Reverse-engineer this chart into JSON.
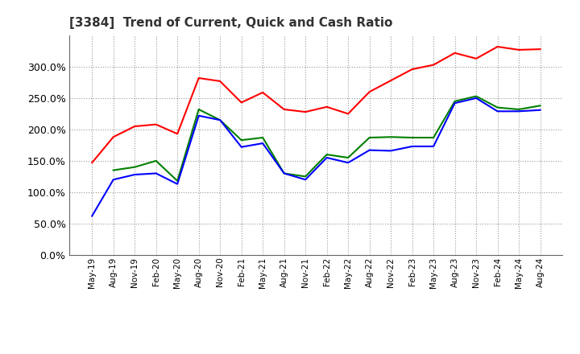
{
  "title": "[3384]  Trend of Current, Quick and Cash Ratio",
  "x_labels": [
    "May-19",
    "Aug-19",
    "Nov-19",
    "Feb-20",
    "May-20",
    "Aug-20",
    "Nov-20",
    "Feb-21",
    "May-21",
    "Aug-21",
    "Nov-21",
    "Feb-22",
    "May-22",
    "Aug-22",
    "Nov-22",
    "Feb-23",
    "May-23",
    "Aug-23",
    "Nov-23",
    "Feb-24",
    "May-24",
    "Aug-24"
  ],
  "current_ratio": [
    1.47,
    1.88,
    2.05,
    2.08,
    1.93,
    2.82,
    2.77,
    2.43,
    2.59,
    2.32,
    2.28,
    2.36,
    2.25,
    2.6,
    2.78,
    2.96,
    3.03,
    3.22,
    3.13,
    3.32,
    3.27,
    3.28
  ],
  "quick_ratio": [
    null,
    1.35,
    1.4,
    1.5,
    1.18,
    2.32,
    2.15,
    1.83,
    1.87,
    1.3,
    1.25,
    1.6,
    1.55,
    1.87,
    1.88,
    1.87,
    1.87,
    2.45,
    2.53,
    2.35,
    2.32,
    2.38
  ],
  "cash_ratio": [
    0.62,
    1.2,
    1.28,
    1.3,
    1.13,
    2.22,
    2.15,
    1.72,
    1.78,
    1.3,
    1.2,
    1.55,
    1.47,
    1.67,
    1.66,
    1.73,
    1.73,
    2.42,
    2.5,
    2.29,
    2.29,
    2.31
  ],
  "current_color": "#FF0000",
  "quick_color": "#008000",
  "cash_color": "#0000FF",
  "ylim": [
    0.0,
    3.5
  ],
  "yticks": [
    0.0,
    0.5,
    1.0,
    1.5,
    2.0,
    2.5,
    3.0
  ],
  "background_color": "#FFFFFF",
  "plot_bg_color": "#FFFFFF",
  "grid_color": "#999999",
  "line_width": 1.5
}
